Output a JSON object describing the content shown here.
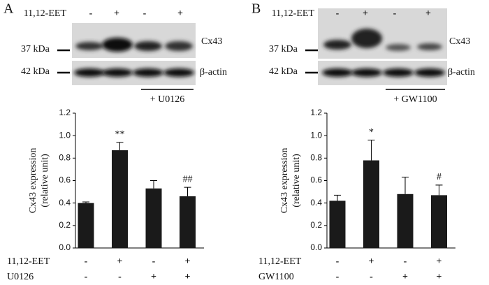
{
  "panels": [
    {
      "letter": "A",
      "blot": {
        "treatment": "11,12-EET",
        "signs": [
          "-",
          "+",
          "-",
          "+"
        ],
        "bands": [
          "Cx43",
          "β-actin"
        ],
        "markers": [
          "37 kDa",
          "42 kDa"
        ],
        "inhibitor": "+ U0126"
      }
    },
    {
      "letter": "B",
      "blot": {
        "treatment": "11,12-EET",
        "signs": [
          "-",
          "+",
          "-",
          "+"
        ],
        "bands": [
          "Cx43",
          "β-actin"
        ],
        "markers": [
          "37 kDa",
          "42 kDa"
        ],
        "inhibitor": "+ GW1100"
      }
    }
  ],
  "chart_data": [
    {
      "type": "bar",
      "ylabel": [
        "Cx43 expression",
        "(relative unit)"
      ],
      "color": "#1a1a1a",
      "values": [
        0.4,
        0.87,
        0.53,
        0.46
      ],
      "errors": [
        0.01,
        0.07,
        0.07,
        0.08
      ],
      "annotations": [
        {
          "index": 1,
          "text": "**"
        },
        {
          "index": 3,
          "text": "##"
        }
      ],
      "ylim": [
        0,
        1.2
      ],
      "yticks": [
        {
          "value": 0,
          "label": "0.0"
        },
        0.2,
        0.4,
        0.6,
        0.8,
        {
          "value": 1,
          "label": "1.0"
        },
        1.2
      ],
      "treatments": [
        {
          "name": "11,12-EET",
          "signs": [
            "-",
            "+",
            "-",
            "+"
          ]
        },
        {
          "name": "U0126",
          "signs": [
            "-",
            "-",
            "+",
            "+"
          ]
        }
      ]
    },
    {
      "type": "bar",
      "ylabel": [
        "Cx43 expression",
        "(relative unit)"
      ],
      "color": "#1a1a1a",
      "values": [
        0.42,
        0.78,
        0.48,
        0.47
      ],
      "errors": [
        0.05,
        0.18,
        0.15,
        0.09
      ],
      "annotations": [
        {
          "index": 1,
          "text": "*"
        },
        {
          "index": 3,
          "text": "#"
        }
      ],
      "ylim": [
        0,
        1.2
      ],
      "yticks": [
        {
          "value": 0,
          "label": "0.0"
        },
        0.2,
        0.4,
        0.6,
        0.8,
        {
          "value": 1,
          "label": "1.0"
        },
        1.2
      ],
      "treatments": [
        {
          "name": "11,12-EET",
          "signs": [
            "-",
            "+",
            "-",
            "+"
          ]
        },
        {
          "name": "GW1100",
          "signs": [
            "-",
            "-",
            "+",
            "+"
          ]
        }
      ]
    }
  ]
}
